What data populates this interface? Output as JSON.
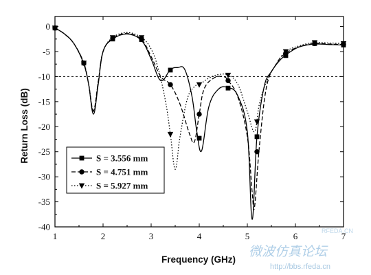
{
  "chart_data": {
    "type": "line",
    "xlabel": "Frequency (GHz)",
    "ylabel": "Return Loss (dB)",
    "xlim": [
      1,
      7
    ],
    "ylim": [
      -40,
      2
    ],
    "xticks": [
      1,
      2,
      3,
      4,
      5,
      6,
      7
    ],
    "yticks": [
      0,
      -5,
      -10,
      -15,
      -20,
      -25,
      -30,
      -35,
      -40
    ],
    "reference_line": {
      "y": -10,
      "style": "dashed"
    },
    "legend_position": "lower-left",
    "series": [
      {
        "name": "S = 3.556 mm",
        "line_style": "solid",
        "marker": "square",
        "color": "#000000",
        "x": [
          1.0,
          1.2,
          1.4,
          1.6,
          1.7,
          1.8,
          1.9,
          2.0,
          2.2,
          2.5,
          2.8,
          3.0,
          3.2,
          3.4,
          3.55,
          3.7,
          3.85,
          3.95,
          4.05,
          4.2,
          4.4,
          4.6,
          4.8,
          5.0,
          5.1,
          5.2,
          5.35,
          5.5,
          5.7,
          5.9,
          6.1,
          6.4,
          6.7,
          7.0
        ],
        "y": [
          -0.3,
          -1.5,
          -3.5,
          -7.5,
          -11.5,
          -17.5,
          -11.5,
          -5.0,
          -2.5,
          -1.5,
          -2.8,
          -6.5,
          -10.8,
          -8.6,
          -8.2,
          -8.6,
          -14.0,
          -21.0,
          -24.8,
          -16.0,
          -12.5,
          -12.2,
          -13.8,
          -21.0,
          -38.5,
          -22.0,
          -12.0,
          -9.0,
          -6.5,
          -5.0,
          -4.0,
          -3.5,
          -3.6,
          -3.7
        ],
        "marker_x": [
          1.0,
          1.6,
          2.2,
          2.8,
          3.4,
          4.0,
          4.6,
          5.2,
          5.8,
          6.4,
          7.0
        ],
        "marker_y": [
          -0.3,
          -7.3,
          -2.5,
          -2.6,
          -8.7,
          -22.3,
          -12.3,
          -22.0,
          -5.8,
          -3.4,
          -3.7
        ]
      },
      {
        "name": "S = 4.751 mm",
        "line_style": "dashed",
        "marker": "circle",
        "color": "#000000",
        "x": [
          1.0,
          1.2,
          1.4,
          1.6,
          1.7,
          1.8,
          1.9,
          2.0,
          2.2,
          2.5,
          2.8,
          3.0,
          3.2,
          3.4,
          3.6,
          3.8,
          3.9,
          4.0,
          4.1,
          4.3,
          4.5,
          4.6,
          4.8,
          5.0,
          5.1,
          5.15,
          5.25,
          5.4,
          5.6,
          5.8,
          6.1,
          6.4,
          6.7,
          7.0
        ],
        "y": [
          -0.3,
          -1.5,
          -3.5,
          -7.3,
          -11.5,
          -16.8,
          -11.0,
          -5.0,
          -2.4,
          -1.4,
          -2.6,
          -6.0,
          -10.0,
          -11.6,
          -15.5,
          -21.5,
          -23.0,
          -17.5,
          -12.5,
          -10.3,
          -10.0,
          -10.8,
          -14.0,
          -22.0,
          -33.0,
          -36.0,
          -24.0,
          -12.0,
          -7.5,
          -5.3,
          -4.0,
          -3.4,
          -3.5,
          -3.6
        ],
        "marker_x": [
          1.0,
          1.6,
          2.2,
          2.8,
          3.4,
          4.0,
          4.6,
          5.2,
          5.8,
          6.4,
          7.0
        ],
        "marker_y": [
          -0.3,
          -7.3,
          -2.4,
          -2.5,
          -11.6,
          -17.5,
          -10.8,
          -25.0,
          -5.3,
          -3.4,
          -3.6
        ]
      },
      {
        "name": "S = 5.927 mm",
        "line_style": "dotted",
        "marker": "triangle-down",
        "color": "#000000",
        "x": [
          1.0,
          1.2,
          1.4,
          1.6,
          1.7,
          1.8,
          1.9,
          2.0,
          2.2,
          2.5,
          2.8,
          3.0,
          3.15,
          3.3,
          3.4,
          3.5,
          3.6,
          3.75,
          3.9,
          4.0,
          4.2,
          4.4,
          4.6,
          4.8,
          5.0,
          5.15,
          5.25,
          5.4,
          5.6,
          5.8,
          6.1,
          6.4,
          6.7,
          7.0
        ],
        "y": [
          -0.3,
          -1.5,
          -3.5,
          -7.3,
          -11.5,
          -17.0,
          -11.0,
          -5.0,
          -2.2,
          -1.2,
          -2.2,
          -4.5,
          -8.5,
          -15.0,
          -21.5,
          -28.5,
          -22.0,
          -14.5,
          -12.0,
          -11.6,
          -10.3,
          -9.6,
          -9.7,
          -11.5,
          -17.0,
          -21.0,
          -15.5,
          -11.0,
          -7.5,
          -5.0,
          -3.8,
          -3.2,
          -3.3,
          -3.4
        ],
        "marker_x": [
          1.0,
          1.6,
          2.2,
          2.8,
          3.4,
          4.0,
          4.6,
          5.2,
          5.8,
          6.4,
          7.0
        ],
        "marker_y": [
          -0.3,
          -7.3,
          -2.2,
          -2.2,
          -21.5,
          -11.6,
          -9.7,
          -19.0,
          -5.0,
          -3.2,
          -3.4
        ]
      }
    ]
  },
  "watermark": {
    "chinese_text": "微波仿真论坛",
    "url": "http://bbs.rfeda.cn",
    "logo_text": "RFEDA.CN"
  }
}
